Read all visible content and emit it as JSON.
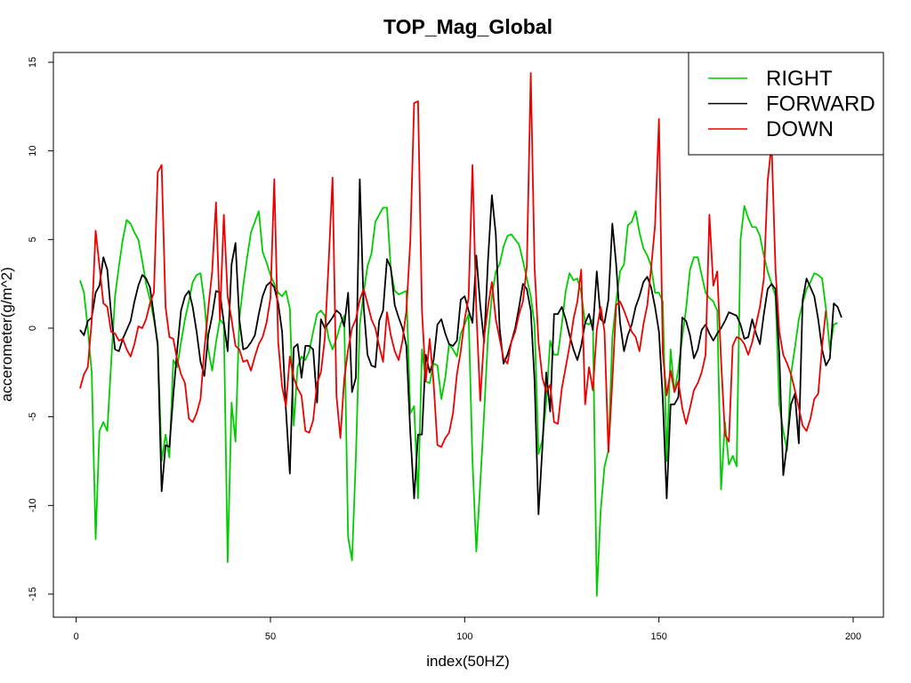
{
  "chart_data": {
    "type": "line",
    "title": "TOP_Mag_Global",
    "xlabel": "index(50HZ)",
    "ylabel": "accerometer(g/m^2)",
    "xlim": [
      1,
      200
    ],
    "ylim": [
      -15,
      15
    ],
    "x_ticks": [
      0,
      50,
      100,
      150,
      200
    ],
    "y_ticks": [
      -15,
      -10,
      -5,
      0,
      5,
      10,
      15
    ],
    "legend_position": "top-right",
    "grid": false,
    "series": [
      {
        "name": "RIGHT",
        "color": "#00cd00",
        "values": [
          2.7,
          2.0,
          0.0,
          -2.5,
          -11.9,
          -5.8,
          -5.3,
          -5.8,
          -2.0,
          1.8,
          3.5,
          5.0,
          6.1,
          5.9,
          5.4,
          5.0,
          3.8,
          2.5,
          1.6,
          0.5,
          -0.8,
          -7.5,
          -6.0,
          -7.3,
          -1.8,
          -2.2,
          -0.8,
          0.5,
          1.5,
          2.6,
          3.0,
          3.1,
          1.5,
          -1.2,
          -2.4,
          -0.8,
          0.5,
          0.2,
          -13.2,
          -4.2,
          -6.4,
          0.5,
          2.4,
          4.0,
          5.4,
          6.0,
          6.6,
          4.3,
          3.7,
          3.0,
          2.5,
          2.0,
          1.8,
          2.1,
          1.1,
          -5.5,
          -2.2,
          -1.6,
          -1.8,
          -1.3,
          -0.2,
          0.8,
          1.0,
          0.7,
          -0.6,
          -1.2,
          -0.6,
          0.2,
          0.7,
          -11.8,
          -13.1,
          -7.3,
          0.2,
          2.0,
          3.5,
          4.2,
          6.0,
          6.4,
          6.8,
          6.8,
          3.3,
          2.1,
          1.9,
          2.0,
          2.1,
          -4.8,
          -4.4,
          -9.6,
          -1.2,
          -3.0,
          -3.1,
          -2.0,
          -2.1,
          -4.0,
          -2.8,
          -0.9,
          -1.2,
          -1.6,
          -0.3,
          0.2,
          0.8,
          -7.5,
          -12.6,
          -8.8,
          -4.8,
          -0.5,
          1.8,
          3.2,
          3.6,
          4.6,
          5.2,
          5.3,
          5.0,
          4.7,
          3.8,
          2.8,
          1.8,
          0.2,
          -7.1,
          -6.3,
          -4.2,
          -0.7,
          -1.5,
          -1.5,
          0.2,
          2.1,
          3.1,
          2.7,
          2.8,
          2.0,
          0.3,
          0.2,
          0.5,
          -15.1,
          -10.3,
          -7.8,
          -6.9,
          -0.5,
          1.5,
          3.2,
          3.6,
          5.8,
          6.0,
          6.6,
          5.4,
          4.5,
          4.1,
          3.5,
          2.0,
          2.0,
          1.5,
          -7.5,
          -1.2,
          -3.6,
          -2.3,
          -0.5,
          1.1,
          3.3,
          4.0,
          4.0,
          3.0,
          2.0,
          1.7,
          1.5,
          1.0,
          -9.1,
          -5.3,
          -7.7,
          -7.2,
          -7.8,
          5.0,
          6.9,
          6.2,
          5.7,
          5.7,
          5.2,
          4.1,
          3.2,
          2.5,
          1.8,
          -4.3,
          -5.8,
          -6.9,
          -2.6,
          -1.1,
          0.5,
          1.4,
          2.2,
          2.6,
          3.1,
          3.0,
          2.8,
          1.1,
          -1.2,
          0.2,
          0.3
        ]
      },
      {
        "name": "FORWARD",
        "color": "#000000",
        "values": [
          -0.1,
          -0.4,
          0.4,
          0.6,
          2.0,
          2.4,
          4.0,
          3.3,
          0.8,
          -1.2,
          -1.3,
          -0.6,
          -0.1,
          0.4,
          1.5,
          2.4,
          3.0,
          2.8,
          2.3,
          0.7,
          -1.0,
          -9.2,
          -6.6,
          -6.7,
          -3.8,
          -1.2,
          1.0,
          1.8,
          2.1,
          1.2,
          -0.2,
          -1.9,
          -2.7,
          -0.4,
          0.7,
          2.1,
          2.0,
          0.3,
          -1.3,
          3.6,
          4.8,
          0.5,
          -1.2,
          -1.1,
          -0.8,
          -0.4,
          0.8,
          1.8,
          2.4,
          2.6,
          2.3,
          1.4,
          -0.2,
          -4.6,
          -8.2,
          -1.1,
          -0.9,
          -2.8,
          -1.0,
          -1.0,
          -1.2,
          -4.2,
          0.5,
          0.0,
          0.3,
          0.6,
          1.0,
          0.8,
          0.1,
          2.0,
          -3.6,
          -2.8,
          8.4,
          1.2,
          -1.5,
          -2.1,
          -2.2,
          0.4,
          1.0,
          3.9,
          3.4,
          1.3,
          0.6,
          0.0,
          -1.0,
          -5.9,
          -9.6,
          -6.0,
          -6.0,
          -1.5,
          -2.5,
          -1.8,
          0.2,
          0.5,
          -0.3,
          -0.9,
          -1.0,
          -0.7,
          1.6,
          1.8,
          1.0,
          0.3,
          4.1,
          1.3,
          -0.8,
          3.8,
          7.5,
          5.3,
          0.0,
          -2.0,
          -1.5,
          -0.8,
          0.0,
          1.2,
          2.5,
          2.2,
          1.0,
          -3.0,
          -10.5,
          -6.7,
          -2.5,
          -4.7,
          0.8,
          0.8,
          1.2,
          0.5,
          -0.4,
          -1.2,
          -1.8,
          -1.0,
          0.3,
          0.8,
          -0.1,
          3.2,
          0.5,
          0.3,
          1.6,
          5.9,
          3.6,
          0.3,
          -1.3,
          -0.4,
          0.2,
          1.2,
          1.8,
          2.6,
          2.9,
          2.3,
          1.2,
          -0.2,
          -4.0,
          -9.6,
          -4.3,
          -4.3,
          -3.9,
          0.6,
          0.4,
          -0.4,
          -1.7,
          -1.2,
          -0.1,
          0.2,
          -0.3,
          -0.7,
          -0.3,
          0.0,
          0.4,
          0.9,
          0.8,
          0.7,
          0.2,
          -0.6,
          -0.5,
          0.5,
          -0.3,
          -0.9,
          0.8,
          2.2,
          2.5,
          2.2,
          -1.5,
          -8.3,
          -6.5,
          -4.3,
          -3.7,
          -6.5,
          1.6,
          2.8,
          2.3,
          1.8,
          0.5,
          -1.2,
          -2.1,
          -1.7,
          1.4,
          1.2,
          0.6
        ]
      },
      {
        "name": "DOWN",
        "color": "#ee0000",
        "values": [
          -3.4,
          -2.6,
          -2.2,
          0.4,
          5.5,
          3.5,
          1.4,
          1.2,
          -0.2,
          -0.3,
          -0.7,
          -0.6,
          -1.2,
          -1.6,
          -0.9,
          0.1,
          0.0,
          0.5,
          1.4,
          2.0,
          8.8,
          9.2,
          1.2,
          -0.5,
          -0.6,
          -1.8,
          -2.6,
          -3.1,
          -5.1,
          -5.3,
          -4.8,
          -4.0,
          -1.2,
          1.1,
          3.2,
          7.1,
          0.5,
          6.4,
          1.8,
          0.5,
          -1.0,
          -1.2,
          -1.9,
          -1.8,
          -2.4,
          -1.6,
          -0.9,
          -0.5,
          0.3,
          1.7,
          8.4,
          -0.8,
          -3.3,
          -4.4,
          -1.6,
          -2.8,
          -3.4,
          -3.8,
          -5.8,
          -5.9,
          -5.2,
          -3.1,
          -2.5,
          -0.6,
          3.8,
          8.5,
          -3.8,
          -6.2,
          -2.9,
          -1.2,
          0.0,
          0.5,
          1.6,
          2.2,
          1.4,
          0.5,
          0.0,
          -1.0,
          -1.9,
          0.9,
          -0.4,
          -1.3,
          -1.8,
          -0.7,
          1.0,
          4.9,
          12.7,
          12.8,
          1.0,
          -3.0,
          -0.6,
          -3.1,
          -6.6,
          -6.7,
          -6.2,
          -5.9,
          -4.8,
          -2.6,
          -1.3,
          0.5,
          1.7,
          9.2,
          1.0,
          -4.1,
          -0.5,
          1.2,
          2.6,
          0.5,
          -0.6,
          -1.7,
          -2.0,
          -0.8,
          -0.2,
          0.8,
          1.5,
          3.5,
          14.4,
          3.4,
          -0.8,
          -2.8,
          -3.6,
          -3.2,
          -5.3,
          -5.4,
          -3.4,
          -2.2,
          -1.0,
          0.5,
          1.5,
          3.3,
          -4.3,
          -2.2,
          -3.5,
          -0.1,
          1.2,
          -0.2,
          -7.0,
          -3.0,
          1.3,
          1.5,
          1.0,
          0.4,
          -0.2,
          -0.5,
          -1.3,
          0.2,
          1.3,
          3.4,
          5.8,
          11.8,
          -1.4,
          -3.8,
          -2.4,
          -3.6,
          -3.0,
          -4.5,
          -5.4,
          -4.5,
          -3.5,
          -3.1,
          -2.5,
          -1.5,
          6.4,
          2.4,
          3.2,
          -1.8,
          -6.0,
          -6.4,
          -1.0,
          -0.5,
          -0.6,
          -0.9,
          -1.5,
          -0.8,
          0.2,
          1.2,
          2.8,
          8.3,
          10.4,
          3.3,
          -0.2,
          -1.5,
          -2.0,
          -2.6,
          -3.5,
          -4.5,
          -5.5,
          -5.8,
          -5.1,
          -4.0,
          -3.7,
          -1.0,
          1.0
        ]
      }
    ]
  }
}
